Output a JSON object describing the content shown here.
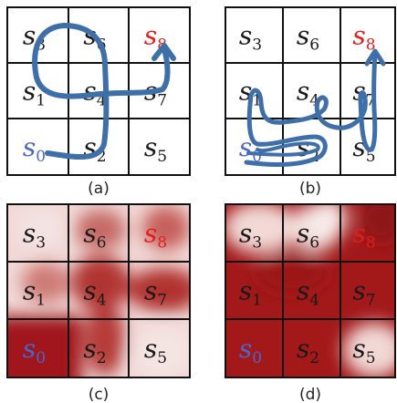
{
  "colors": {
    "grid_line": "#111111",
    "path": "#3f6fa8",
    "text": "#1a1a1a",
    "start": "#4a67c8",
    "goal": "#e01e1e",
    "heat_dark": "#a0191a",
    "heat_light": "#f3dede"
  },
  "panels": [
    {
      "caption": "(a)",
      "cells": [
        {
          "name": "s",
          "sub": "3",
          "role": "normal"
        },
        {
          "name": "s",
          "sub": "6",
          "role": "normal"
        },
        {
          "name": "s",
          "sub": "8",
          "role": "goal"
        },
        {
          "name": "s",
          "sub": "1",
          "role": "normal"
        },
        {
          "name": "s",
          "sub": "4",
          "role": "normal"
        },
        {
          "name": "s",
          "sub": "7",
          "role": "normal"
        },
        {
          "name": "s",
          "sub": "0",
          "role": "start"
        },
        {
          "name": "s",
          "sub": "2",
          "role": "normal"
        },
        {
          "name": "s",
          "sub": "5",
          "role": "normal"
        }
      ]
    },
    {
      "caption": "(b)",
      "cells": [
        {
          "name": "s",
          "sub": "3",
          "role": "normal"
        },
        {
          "name": "s",
          "sub": "6",
          "role": "normal"
        },
        {
          "name": "s",
          "sub": "8",
          "role": "goal"
        },
        {
          "name": "s",
          "sub": "1",
          "role": "normal"
        },
        {
          "name": "s",
          "sub": "4",
          "role": "normal"
        },
        {
          "name": "s",
          "sub": "7",
          "role": "normal"
        },
        {
          "name": "s",
          "sub": "0",
          "role": "start"
        },
        {
          "name": "s",
          "sub": "2",
          "role": "normal"
        },
        {
          "name": "s",
          "sub": "5",
          "role": "normal"
        }
      ]
    },
    {
      "caption": "(c)",
      "cells": [
        {
          "name": "s",
          "sub": "3",
          "role": "normal"
        },
        {
          "name": "s",
          "sub": "6",
          "role": "normal"
        },
        {
          "name": "s",
          "sub": "8",
          "role": "goal"
        },
        {
          "name": "s",
          "sub": "1",
          "role": "normal"
        },
        {
          "name": "s",
          "sub": "4",
          "role": "normal"
        },
        {
          "name": "s",
          "sub": "7",
          "role": "normal"
        },
        {
          "name": "s",
          "sub": "0",
          "role": "start"
        },
        {
          "name": "s",
          "sub": "2",
          "role": "normal"
        },
        {
          "name": "s",
          "sub": "5",
          "role": "normal"
        }
      ]
    },
    {
      "caption": "(d)",
      "cells": [
        {
          "name": "s",
          "sub": "3",
          "role": "normal"
        },
        {
          "name": "s",
          "sub": "6",
          "role": "normal"
        },
        {
          "name": "s",
          "sub": "8",
          "role": "goal"
        },
        {
          "name": "s",
          "sub": "1",
          "role": "normal"
        },
        {
          "name": "s",
          "sub": "4",
          "role": "normal"
        },
        {
          "name": "s",
          "sub": "7",
          "role": "normal"
        },
        {
          "name": "s",
          "sub": "0",
          "role": "start"
        },
        {
          "name": "s",
          "sub": "2",
          "role": "normal"
        },
        {
          "name": "s",
          "sub": "5",
          "role": "normal"
        }
      ]
    }
  ]
}
